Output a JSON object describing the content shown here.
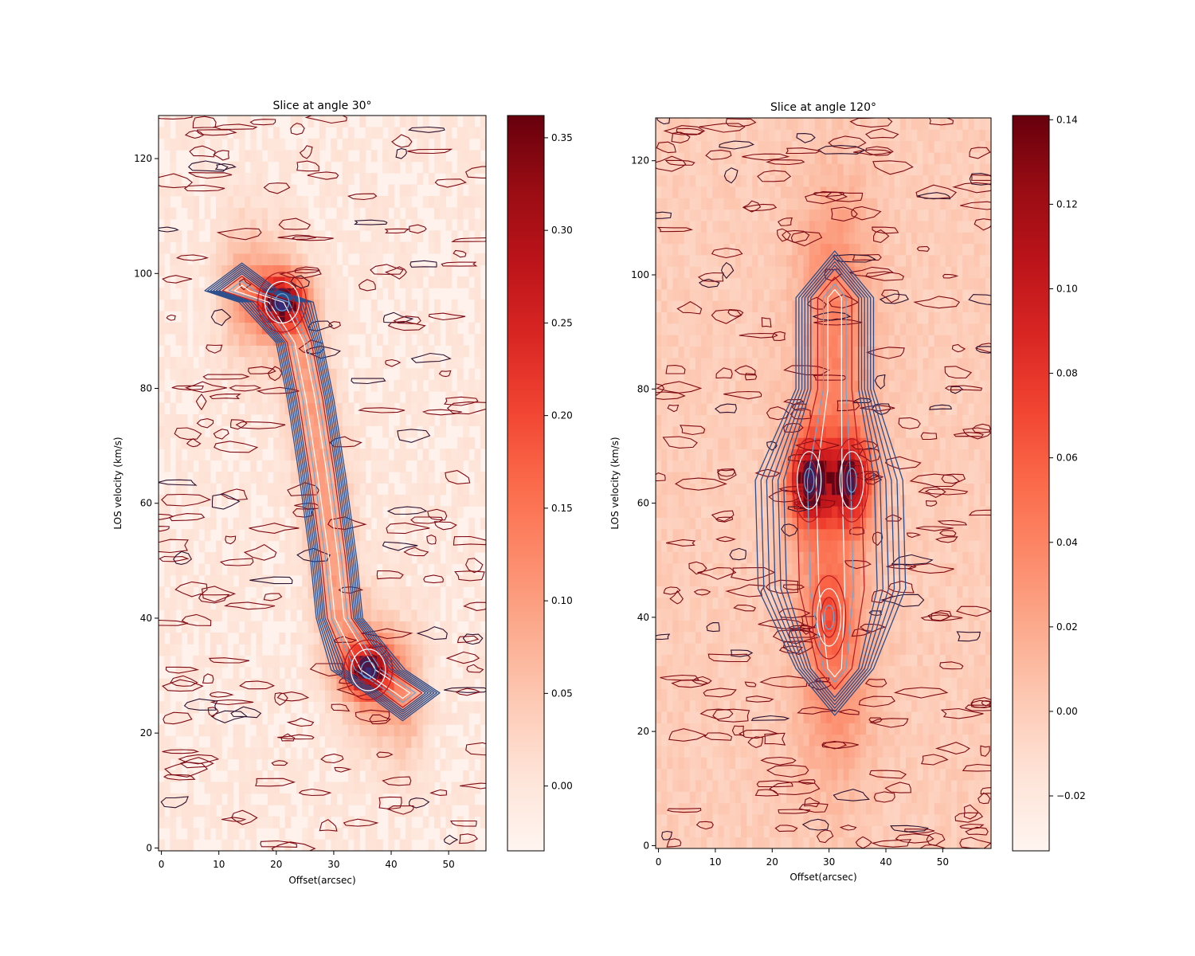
{
  "chart_data": [
    {
      "type": "heatmap",
      "title": "Slice at angle 30°",
      "xlabel": "Offset(arcsec)",
      "ylabel": "LOS velocity (km/s)",
      "xlim": [
        -0.5,
        56.5
      ],
      "ylim": [
        -0.5,
        127.5
      ],
      "xticks": [
        0,
        10,
        20,
        30,
        40,
        50
      ],
      "yticks": [
        0,
        20,
        40,
        60,
        80,
        100,
        120
      ],
      "colormap": "Reds",
      "colorbar": {
        "min": -0.035,
        "max": 0.362,
        "ticks": [
          0.0,
          0.05,
          0.1,
          0.15,
          0.2,
          0.25,
          0.3,
          0.35
        ],
        "tick_labels": [
          "0.00",
          "0.05",
          "0.10",
          "0.15",
          "0.20",
          "0.25",
          "0.30",
          "0.35"
        ]
      },
      "emission_features": [
        {
          "offset": 21,
          "velocity": 95,
          "peak": 0.36
        },
        {
          "offset": 36,
          "velocity": 31,
          "peak": 0.35
        }
      ],
      "ridge": [
        [
          14,
          97
        ],
        [
          20,
          95
        ],
        [
          24,
          88
        ],
        [
          26,
          78
        ],
        [
          28,
          65
        ],
        [
          30,
          50
        ],
        [
          31,
          40
        ],
        [
          36,
          31
        ],
        [
          42,
          27
        ]
      ],
      "contour_colors": [
        "#7f0a14",
        "#b41a22",
        "#2a4e8c",
        "#6aa8d8",
        "#ffffff"
      ]
    },
    {
      "type": "heatmap",
      "title": "Slice at angle 120°",
      "xlabel": "Offset(arcsec)",
      "ylabel": "LOS velocity (km/s)",
      "xlim": [
        -0.5,
        58.5
      ],
      "ylim": [
        -0.5,
        127.5
      ],
      "xticks": [
        0,
        10,
        20,
        30,
        40,
        50
      ],
      "yticks": [
        0,
        20,
        40,
        60,
        80,
        100,
        120
      ],
      "colormap": "Reds",
      "colorbar": {
        "min": -0.033,
        "max": 0.141,
        "ticks": [
          -0.02,
          0.0,
          0.02,
          0.04,
          0.06,
          0.08,
          0.1,
          0.12,
          0.14
        ],
        "tick_labels": [
          "−0.02",
          "0.00",
          "0.02",
          "0.04",
          "0.06",
          "0.08",
          "0.10",
          "0.12",
          "0.14"
        ]
      },
      "emission_features": [
        {
          "offset": 26.5,
          "velocity": 64,
          "peak": 0.14
        },
        {
          "offset": 34,
          "velocity": 64,
          "peak": 0.13
        },
        {
          "offset": 30,
          "velocity": 40,
          "peak": 0.04
        }
      ],
      "ridge": [
        [
          31,
          96
        ],
        [
          31,
          80
        ],
        [
          30,
          64
        ],
        [
          30.5,
          45
        ],
        [
          31,
          31
        ]
      ],
      "contour_colors": [
        "#7f0a14",
        "#b41a22",
        "#2a4e8c",
        "#6aa8d8",
        "#ffffff"
      ]
    }
  ]
}
